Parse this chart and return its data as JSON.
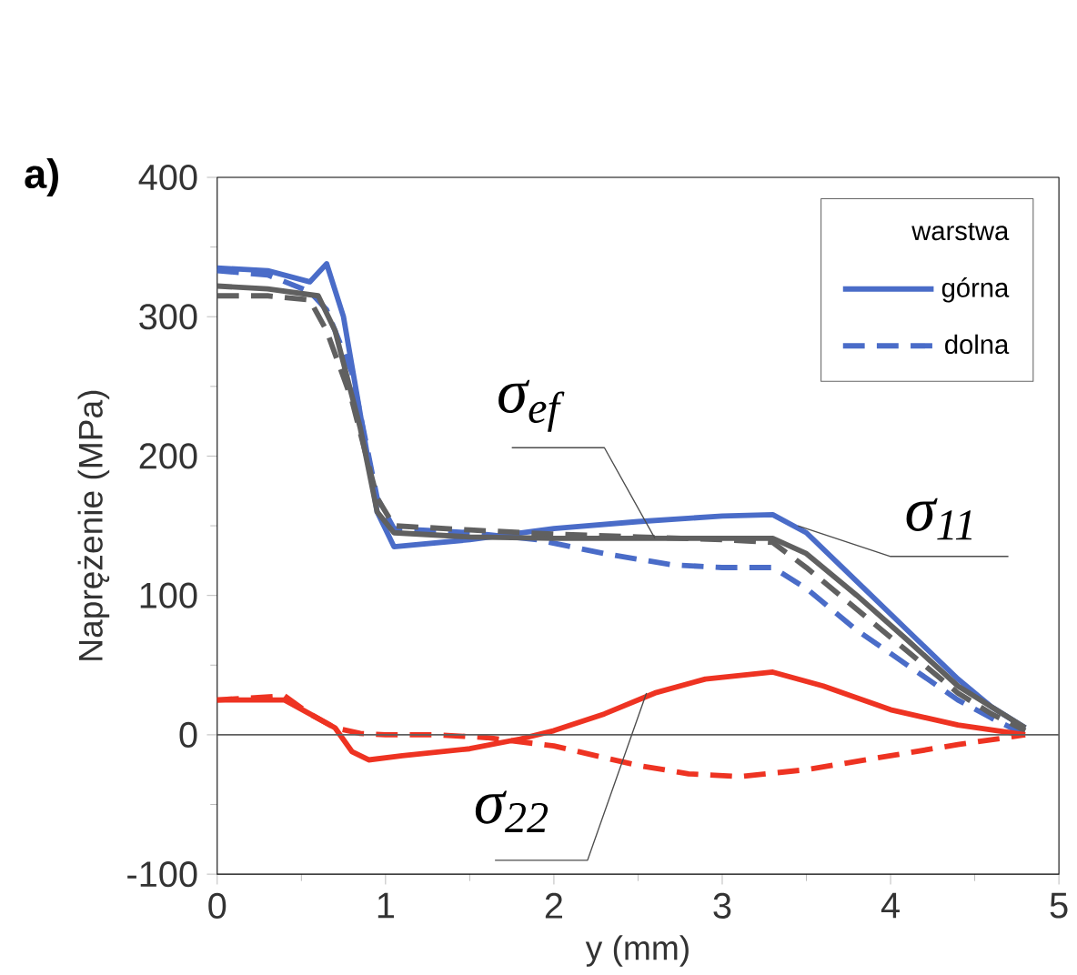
{
  "chart_data": {
    "type": "line",
    "xlabel": "y (mm)",
    "ylabel": "Naprężenie (MPa)",
    "legend_title": "warstwa",
    "xlim": [
      0,
      5
    ],
    "ylim": [
      -100,
      400
    ],
    "xticks": [
      0,
      1,
      2,
      3,
      4,
      5
    ],
    "yticks": [
      -100,
      0,
      100,
      200,
      300,
      400
    ],
    "legend": "top right",
    "ref_lines": [
      {
        "axis": "y",
        "value": 0,
        "color": "#606060"
      }
    ],
    "annotations": [
      "a)",
      {
        "text": "σ$_{ef}$",
        "x": 2.6,
        "y": 141
      },
      {
        "text": "σ$_{11}$",
        "x": 3.45,
        "y": 150
      },
      {
        "text": "σ$_{22}$",
        "x": 2.55,
        "y": 30
      }
    ],
    "series": [
      {
        "name": "górna",
        "color": "#4a6cc8",
        "line_style": "solid",
        "x": [
          0,
          0.3,
          0.55,
          0.65,
          0.75,
          0.85,
          0.95,
          1.05,
          1.5,
          2,
          2.5,
          3,
          3.3,
          3.5,
          3.8,
          4.1,
          4.4,
          4.6,
          4.8
        ],
        "values": [
          335,
          333,
          325,
          338,
          300,
          230,
          160,
          135,
          140,
          148,
          153,
          157,
          158,
          145,
          110,
          75,
          40,
          20,
          5
        ]
      },
      {
        "name": "dolna",
        "color": "#4a6cc8",
        "line_style": "dashed",
        "x": [
          0,
          0.3,
          0.55,
          0.65,
          0.8,
          0.95,
          1.05,
          1.5,
          1.9,
          2.3,
          2.7,
          3,
          3.3,
          3.5,
          3.8,
          4.1,
          4.4,
          4.6,
          4.8
        ],
        "values": [
          333,
          330,
          318,
          305,
          260,
          170,
          148,
          145,
          140,
          130,
          122,
          120,
          120,
          105,
          75,
          50,
          25,
          12,
          0
        ]
      },
      {
        "color": "#606060",
        "line_style": "solid",
        "x": [
          0,
          0.3,
          0.6,
          0.7,
          0.85,
          0.95,
          1.05,
          1.5,
          2,
          2.5,
          3,
          3.3,
          3.5,
          3.8,
          4.1,
          4.4,
          4.6,
          4.8
        ],
        "values": [
          322,
          320,
          315,
          290,
          220,
          160,
          145,
          142,
          141,
          141,
          141,
          141,
          130,
          100,
          68,
          35,
          20,
          5
        ]
      },
      {
        "color": "#606060",
        "line_style": "dashed",
        "x": [
          0,
          0.3,
          0.55,
          0.65,
          0.8,
          0.95,
          1.05,
          1.5,
          2,
          2.5,
          3,
          3.3,
          3.5,
          3.8,
          4.1,
          4.4,
          4.6,
          4.8
        ],
        "values": [
          315,
          315,
          312,
          290,
          240,
          170,
          150,
          147,
          144,
          142,
          140,
          138,
          120,
          90,
          60,
          30,
          15,
          3
        ]
      },
      {
        "color": "#ee3322",
        "line_style": "solid",
        "x": [
          0,
          0.2,
          0.4,
          0.55,
          0.7,
          0.8,
          0.9,
          1.1,
          1.5,
          1.8,
          2,
          2.3,
          2.6,
          2.9,
          3.3,
          3.6,
          4,
          4.4,
          4.8
        ],
        "values": [
          25,
          25,
          25,
          15,
          5,
          -12,
          -18,
          -15,
          -10,
          -3,
          3,
          15,
          30,
          40,
          45,
          35,
          18,
          7,
          0
        ]
      },
      {
        "color": "#ee3322",
        "line_style": "dashed",
        "x": [
          0,
          0.4,
          0.55,
          0.7,
          0.85,
          1,
          1.3,
          1.6,
          2,
          2.5,
          2.8,
          3.1,
          3.5,
          4,
          4.4,
          4.8
        ],
        "values": [
          25,
          28,
          15,
          5,
          1,
          0,
          0,
          -2,
          -8,
          -22,
          -28,
          -30,
          -25,
          -15,
          -7,
          0
        ]
      }
    ]
  }
}
